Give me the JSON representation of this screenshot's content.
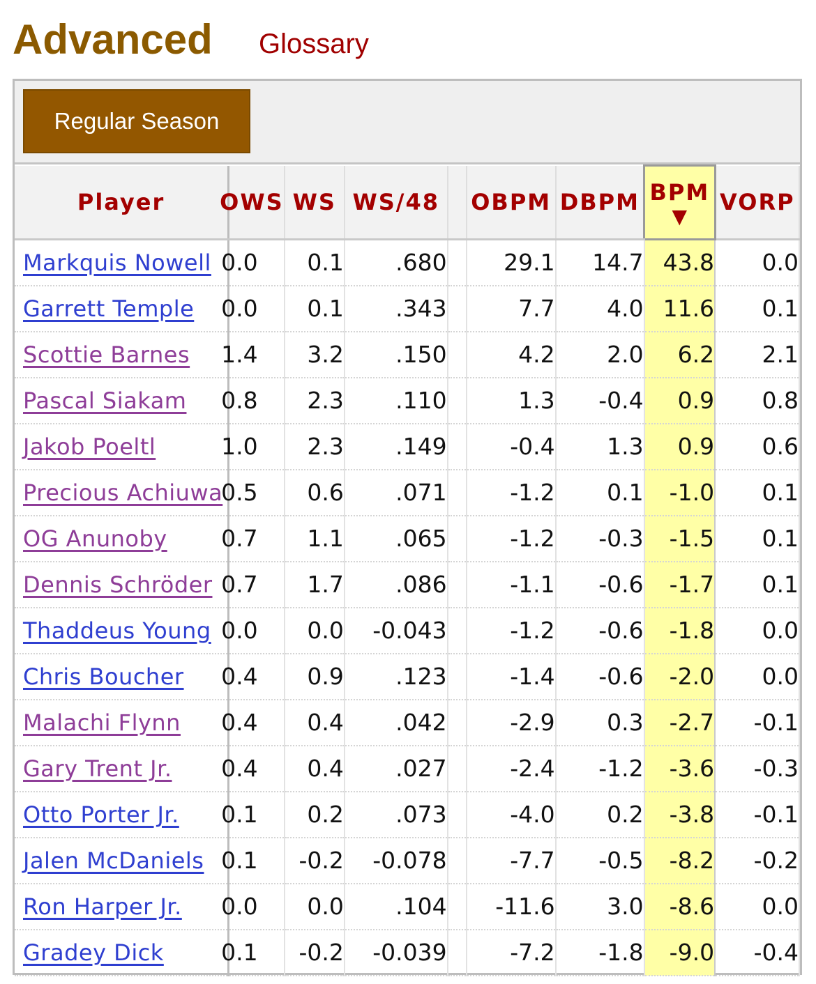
{
  "header": {
    "title": "Advanced",
    "glossary_label": "Glossary"
  },
  "season_toggle": {
    "label": "Regular Season"
  },
  "columns": {
    "player": "Player",
    "ows": "OWS",
    "ws": "WS",
    "ws48": "WS/48",
    "obpm": "OBPM",
    "dbpm": "DBPM",
    "bpm": "BPM",
    "bpm_sort": "▼",
    "vorp": "VORP"
  },
  "colors": {
    "title": "#8b5a00",
    "header_text": "#a30000",
    "link": "#2f3fd0",
    "link_visited": "#8e3d98",
    "sort_highlight": "#ffffa6",
    "button": "#935700"
  },
  "rows": [
    {
      "player": "Markquis Nowell",
      "ows": "0.0",
      "ws": "0.1",
      "ws48": ".680",
      "obpm": "29.1",
      "dbpm": "14.7",
      "bpm": "43.8",
      "vorp": "0.0"
    },
    {
      "player": "Garrett Temple",
      "ows": "0.0",
      "ws": "0.1",
      "ws48": ".343",
      "obpm": "7.7",
      "dbpm": "4.0",
      "bpm": "11.6",
      "vorp": "0.1"
    },
    {
      "player": "Scottie Barnes",
      "ows": "1.4",
      "ws": "3.2",
      "ws48": ".150",
      "obpm": "4.2",
      "dbpm": "2.0",
      "bpm": "6.2",
      "vorp": "2.1"
    },
    {
      "player": "Pascal Siakam",
      "ows": "0.8",
      "ws": "2.3",
      "ws48": ".110",
      "obpm": "1.3",
      "dbpm": "-0.4",
      "bpm": "0.9",
      "vorp": "0.8"
    },
    {
      "player": "Jakob Poeltl",
      "ows": "1.0",
      "ws": "2.3",
      "ws48": ".149",
      "obpm": "-0.4",
      "dbpm": "1.3",
      "bpm": "0.9",
      "vorp": "0.6"
    },
    {
      "player": "Precious Achiuwa",
      "ows": "0.5",
      "ws": "0.6",
      "ws48": ".071",
      "obpm": "-1.2",
      "dbpm": "0.1",
      "bpm": "-1.0",
      "vorp": "0.1"
    },
    {
      "player": "OG Anunoby",
      "ows": "0.7",
      "ws": "1.1",
      "ws48": ".065",
      "obpm": "-1.2",
      "dbpm": "-0.3",
      "bpm": "-1.5",
      "vorp": "0.1"
    },
    {
      "player": "Dennis Schröder",
      "ows": "0.7",
      "ws": "1.7",
      "ws48": ".086",
      "obpm": "-1.1",
      "dbpm": "-0.6",
      "bpm": "-1.7",
      "vorp": "0.1"
    },
    {
      "player": "Thaddeus Young",
      "ows": "0.0",
      "ws": "0.0",
      "ws48": "-0.043",
      "obpm": "-1.2",
      "dbpm": "-0.6",
      "bpm": "-1.8",
      "vorp": "0.0"
    },
    {
      "player": "Chris Boucher",
      "ows": "0.4",
      "ws": "0.9",
      "ws48": ".123",
      "obpm": "-1.4",
      "dbpm": "-0.6",
      "bpm": "-2.0",
      "vorp": "0.0"
    },
    {
      "player": "Malachi Flynn",
      "ows": "0.4",
      "ws": "0.4",
      "ws48": ".042",
      "obpm": "-2.9",
      "dbpm": "0.3",
      "bpm": "-2.7",
      "vorp": "-0.1"
    },
    {
      "player": "Gary Trent Jr.",
      "ows": "0.4",
      "ws": "0.4",
      "ws48": ".027",
      "obpm": "-2.4",
      "dbpm": "-1.2",
      "bpm": "-3.6",
      "vorp": "-0.3"
    },
    {
      "player": "Otto Porter Jr.",
      "ows": "0.1",
      "ws": "0.2",
      "ws48": ".073",
      "obpm": "-4.0",
      "dbpm": "0.2",
      "bpm": "-3.8",
      "vorp": "-0.1"
    },
    {
      "player": "Jalen McDaniels",
      "ows": "0.1",
      "ws": "-0.2",
      "ws48": "-0.078",
      "obpm": "-7.7",
      "dbpm": "-0.5",
      "bpm": "-8.2",
      "vorp": "-0.2"
    },
    {
      "player": "Ron Harper Jr.",
      "ows": "0.0",
      "ws": "0.0",
      "ws48": ".104",
      "obpm": "-11.6",
      "dbpm": "3.0",
      "bpm": "-8.6",
      "vorp": "0.0"
    },
    {
      "player": "Gradey Dick",
      "ows": "0.1",
      "ws": "-0.2",
      "ws48": "-0.039",
      "obpm": "-7.2",
      "dbpm": "-1.8",
      "bpm": "-9.0",
      "vorp": "-0.4"
    }
  ]
}
